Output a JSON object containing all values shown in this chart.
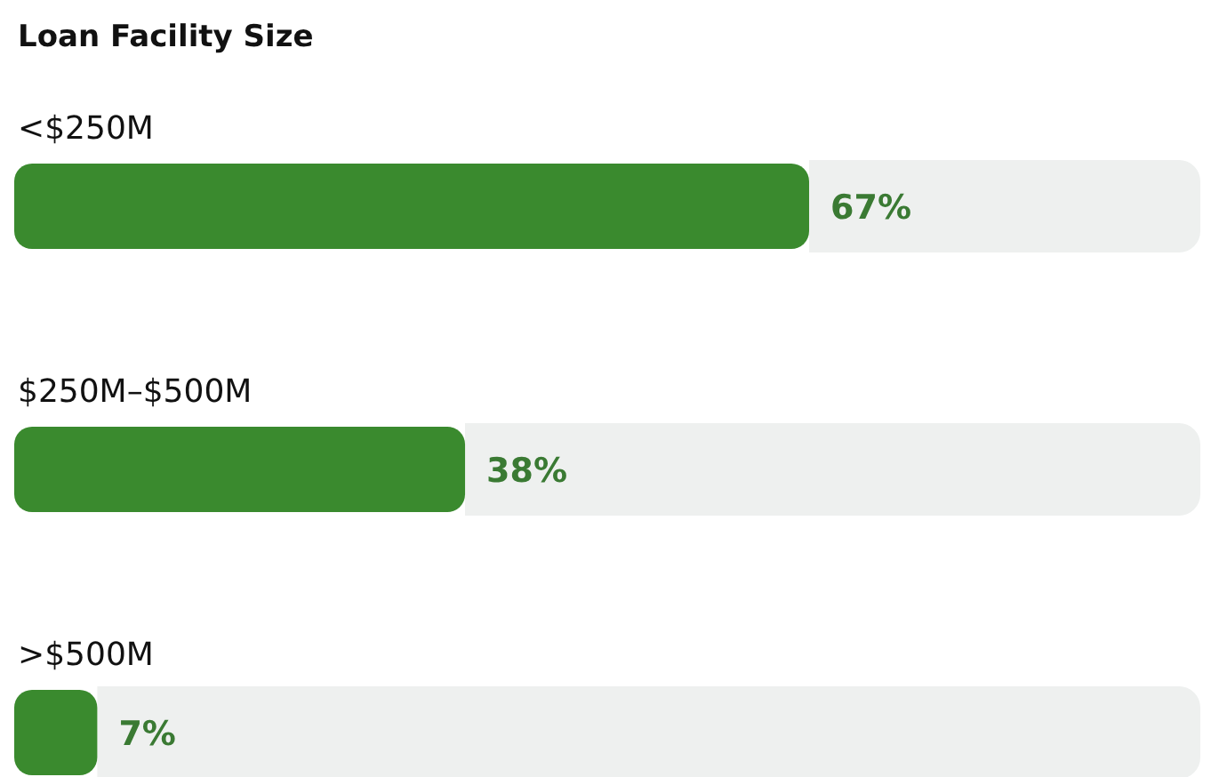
{
  "chart_data": {
    "type": "bar",
    "orientation": "horizontal",
    "title": "Loan Facility Size",
    "categories": [
      "<$250M",
      "$250M–$500M",
      ">$500M"
    ],
    "values": [
      67,
      38,
      7
    ],
    "value_labels": [
      "67%",
      "38%",
      "7%"
    ],
    "color": "#3a8a2e"
  }
}
